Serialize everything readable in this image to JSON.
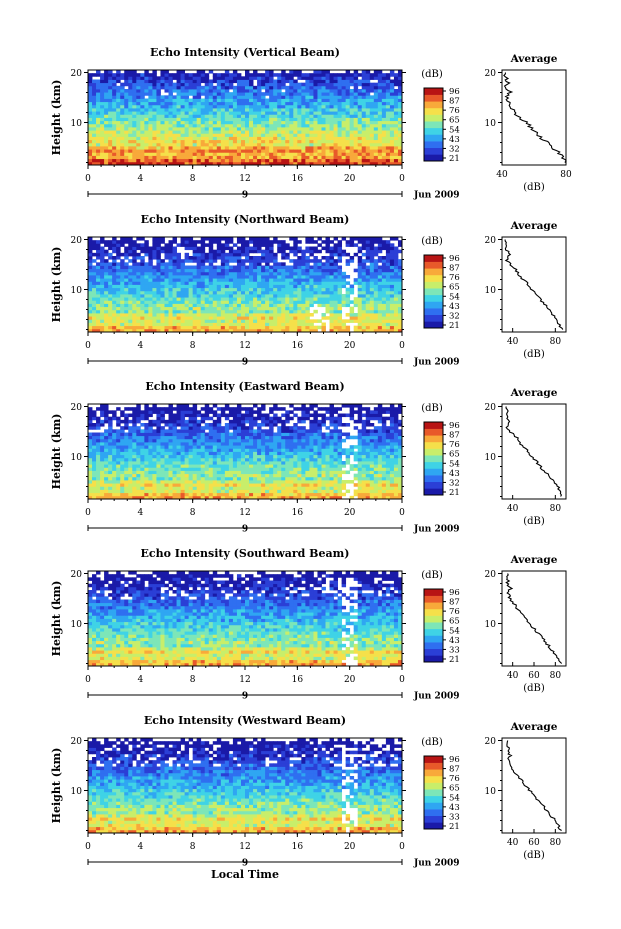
{
  "figure": {
    "xlabel_bottom": "Local Time",
    "date_label": "Jun 2009",
    "day_label": "9",
    "avg_title": "Average",
    "avg_xlabel": "(dB)",
    "cbar_label": "(dB)",
    "colors": {
      "colormap": [
        "#1a1aa8",
        "#2b3fd6",
        "#2f6ff0",
        "#2fa6f2",
        "#3fd3e6",
        "#7de6b8",
        "#c8ee6a",
        "#f5e04a",
        "#f8a93a",
        "#e8592a",
        "#b81414"
      ]
    }
  },
  "chart_data": [
    {
      "type": "heatmap",
      "title": "Echo Intensity (Vertical Beam)",
      "ylabel": "Height (km)",
      "x_ticks": [
        "0",
        "4",
        "8",
        "12",
        "16",
        "20",
        "0"
      ],
      "y_ticks": [
        "20",
        "10"
      ],
      "xlim": [
        0,
        24
      ],
      "ylim": [
        1.5,
        20.5
      ],
      "colorbar_ticks": [
        "96",
        "87",
        "76",
        "65",
        "54",
        "43",
        "32",
        "21"
      ],
      "average_profile": {
        "xlim": [
          40,
          80
        ],
        "x_ticks": [
          "40",
          "80"
        ],
        "y_ticks": [
          "20",
          "10"
        ],
        "height_km": [
          2,
          3,
          4,
          5,
          6,
          7,
          8,
          9,
          10,
          11,
          12,
          13,
          14,
          15,
          16,
          17,
          18,
          19,
          20
        ],
        "db": [
          80,
          78,
          75,
          72,
          68,
          64,
          61,
          58,
          55,
          51,
          48,
          46,
          44,
          43,
          45,
          42,
          44,
          42,
          43
        ]
      }
    },
    {
      "type": "heatmap",
      "title": "Echo Intensity (Northward Beam)",
      "ylabel": "Height (km)",
      "x_ticks": [
        "0",
        "4",
        "8",
        "12",
        "16",
        "20",
        "0"
      ],
      "y_ticks": [
        "20",
        "10"
      ],
      "xlim": [
        0,
        24
      ],
      "ylim": [
        1.5,
        20.5
      ],
      "colorbar_ticks": [
        "96",
        "87",
        "76",
        "65",
        "54",
        "43",
        "32",
        "21"
      ],
      "average_profile": {
        "xlim": [
          30,
          90
        ],
        "x_ticks": [
          "40",
          "80"
        ],
        "y_ticks": [
          "20",
          "10"
        ],
        "height_km": [
          2,
          3,
          4,
          5,
          6,
          7,
          8,
          9,
          10,
          11,
          12,
          13,
          14,
          15,
          16,
          17,
          18,
          19,
          20
        ],
        "db": [
          86,
          84,
          82,
          78,
          74,
          70,
          66,
          62,
          58,
          54,
          50,
          46,
          43,
          38,
          34,
          37,
          34,
          35,
          34
        ]
      }
    },
    {
      "type": "heatmap",
      "title": "Echo Intensity (Eastward Beam)",
      "ylabel": "Height (km)",
      "x_ticks": [
        "0",
        "4",
        "8",
        "12",
        "16",
        "20",
        "0"
      ],
      "y_ticks": [
        "20",
        "10"
      ],
      "xlim": [
        0,
        24
      ],
      "ylim": [
        1.5,
        20.5
      ],
      "colorbar_ticks": [
        "96",
        "87",
        "76",
        "65",
        "54",
        "43",
        "32",
        "21"
      ],
      "average_profile": {
        "xlim": [
          30,
          90
        ],
        "x_ticks": [
          "40",
          "80"
        ],
        "y_ticks": [
          "20",
          "10"
        ],
        "height_km": [
          2,
          3,
          4,
          5,
          6,
          7,
          8,
          9,
          10,
          11,
          12,
          13,
          14,
          15,
          16,
          17,
          18,
          19,
          20
        ],
        "db": [
          86,
          84,
          82,
          78,
          74,
          70,
          66,
          62,
          58,
          54,
          50,
          46,
          43,
          38,
          34,
          37,
          34,
          35,
          34
        ]
      }
    },
    {
      "type": "heatmap",
      "title": "Echo Intensity (Southward Beam)",
      "ylabel": "Height (km)",
      "x_ticks": [
        "0",
        "4",
        "8",
        "12",
        "16",
        "20",
        "0"
      ],
      "y_ticks": [
        "20",
        "10"
      ],
      "xlim": [
        0,
        24
      ],
      "ylim": [
        1.5,
        20.5
      ],
      "colorbar_ticks": [
        "96",
        "87",
        "76",
        "65",
        "54",
        "43",
        "33",
        "21"
      ],
      "average_profile": {
        "xlim": [
          30,
          90
        ],
        "x_ticks": [
          "40",
          "60",
          "80"
        ],
        "y_ticks": [
          "20",
          "10"
        ],
        "height_km": [
          2,
          3,
          4,
          5,
          6,
          7,
          8,
          9,
          10,
          11,
          12,
          13,
          14,
          15,
          16,
          17,
          18,
          19,
          20
        ],
        "db": [
          85,
          83,
          80,
          76,
          72,
          68,
          64,
          60,
          56,
          52,
          48,
          44,
          41,
          37,
          36,
          38,
          35,
          36,
          35
        ]
      }
    },
    {
      "type": "heatmap",
      "title": "Echo Intensity (Westward Beam)",
      "ylabel": "Height (km)",
      "x_ticks": [
        "0",
        "4",
        "8",
        "12",
        "16",
        "20",
        "0"
      ],
      "y_ticks": [
        "20",
        "10"
      ],
      "xlim": [
        0,
        24
      ],
      "ylim": [
        1.5,
        20.5
      ],
      "colorbar_ticks": [
        "96",
        "87",
        "76",
        "65",
        "54",
        "43",
        "33",
        "21"
      ],
      "average_profile": {
        "xlim": [
          30,
          90
        ],
        "x_ticks": [
          "40",
          "60",
          "80"
        ],
        "y_ticks": [
          "20",
          "10"
        ],
        "height_km": [
          2,
          3,
          4,
          5,
          6,
          7,
          8,
          9,
          10,
          11,
          12,
          13,
          14,
          15,
          16,
          17,
          18,
          19,
          20
        ],
        "db": [
          85,
          83,
          80,
          76,
          72,
          68,
          64,
          60,
          56,
          52,
          48,
          44,
          41,
          37,
          36,
          38,
          35,
          36,
          35
        ]
      }
    }
  ]
}
